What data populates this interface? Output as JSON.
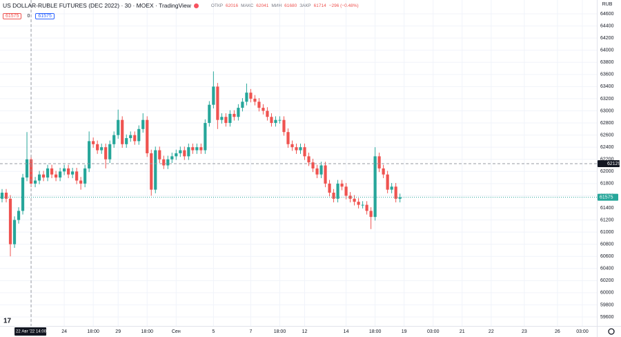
{
  "header": {
    "symbol": "US DOLLAR-RUBLE FUTURES (DEC 2022) · 30 · MOEX · TradingView",
    "ohlc": [
      {
        "label": "ОТКР",
        "value": "62016"
      },
      {
        "label": "МАКС",
        "value": "62041"
      },
      {
        "label": "МИН",
        "value": "61680"
      },
      {
        "label": "ЗАКР",
        "value": "61714"
      }
    ],
    "change": "−296 (−0.48%)",
    "sell": "61575",
    "spread": "0",
    "buy": "61575"
  },
  "chart_data": {
    "type": "candlestick",
    "categories": [
      null,
      null,
      null,
      null,
      null,
      null,
      null,
      "22 Авг '22",
      null,
      null,
      null,
      null,
      null,
      null,
      null,
      "24",
      null,
      null,
      null,
      null,
      null,
      null,
      "18:00",
      null,
      null,
      null,
      null,
      null,
      "29",
      null,
      null,
      null,
      null,
      null,
      null,
      "18:00",
      null,
      null,
      null,
      null,
      null,
      null,
      "Сен",
      null,
      null,
      null,
      null,
      null,
      null,
      null,
      null,
      "5",
      null,
      null,
      null,
      null,
      null,
      null,
      null,
      null,
      "7",
      null,
      null,
      null,
      null,
      null,
      null,
      "18:00",
      null,
      null,
      null,
      null,
      null,
      "12",
      null,
      null,
      null,
      null,
      null,
      null,
      null,
      null,
      null,
      "14",
      null,
      null,
      null,
      null,
      null,
      null,
      "18:00",
      null,
      null,
      null,
      null,
      null,
      null,
      "19",
      null,
      null,
      null,
      null,
      null,
      null,
      "03:00",
      null,
      null,
      null,
      null,
      null,
      null,
      "21",
      null,
      null,
      null,
      null,
      null,
      null,
      "22",
      null,
      null,
      null,
      null,
      null,
      null,
      null,
      "23",
      null,
      null,
      null,
      null,
      null,
      null,
      null,
      "26",
      null,
      null,
      null,
      null,
      null,
      "03:00",
      null,
      null,
      null
    ],
    "open": [
      61550,
      61650,
      61550,
      60800,
      61200,
      61350,
      61900,
      62200,
      61800,
      61850,
      61950,
      61900,
      62050,
      61950,
      61900,
      62000,
      62050,
      61950,
      62000,
      61850,
      61800,
      62050,
      62500,
      62450,
      62350,
      62400,
      62200,
      62450,
      62600,
      62850,
      62450,
      62550,
      62600,
      62500,
      62700,
      62850,
      62300,
      61700,
      62350,
      62200,
      62100,
      62200,
      62250,
      62300,
      62350,
      62250,
      62400,
      62350,
      62400,
      62350,
      62800,
      63100,
      63400,
      62850,
      62900,
      62800,
      62950,
      62900,
      63050,
      63150,
      63300,
      63200,
      63150,
      63050,
      63000,
      62900,
      62800,
      62850,
      62850,
      62650,
      62450,
      62400,
      62350,
      62400,
      62250,
      62150,
      62050,
      61950,
      62100,
      61800,
      61650,
      61550,
      61800,
      61750,
      61600,
      61550,
      61500,
      61450,
      61450,
      61350,
      61250,
      62250,
      62050,
      61950,
      61700,
      61750,
      61550,
      null,
      null,
      null,
      null,
      null,
      null,
      null,
      null,
      null,
      null,
      null,
      null,
      null,
      null,
      null,
      null,
      null,
      null,
      null,
      null,
      null,
      null,
      null,
      null,
      null,
      null,
      null,
      null,
      null,
      null,
      null,
      null,
      null,
      null,
      null,
      null,
      null,
      null,
      null,
      null,
      null,
      null,
      null,
      null,
      null,
      null,
      null
    ],
    "high": [
      61710,
      61710,
      61610,
      61260,
      61410,
      61960,
      62650,
      62260,
      61910,
      62010,
      62010,
      62110,
      62110,
      62010,
      62060,
      62110,
      62110,
      62060,
      62060,
      61910,
      62110,
      62660,
      62560,
      62510,
      62460,
      62460,
      62510,
      62660,
      63020,
      62910,
      62610,
      62660,
      62660,
      62760,
      62960,
      62910,
      62360,
      62410,
      62410,
      62260,
      62260,
      62310,
      62360,
      62410,
      62410,
      62460,
      62460,
      62460,
      62460,
      62860,
      63160,
      63650,
      63460,
      62960,
      62960,
      63010,
      63010,
      63110,
      63210,
      63450,
      63360,
      63260,
      63210,
      63110,
      63060,
      62960,
      62910,
      62910,
      62910,
      62710,
      62510,
      62460,
      62460,
      62460,
      62310,
      62210,
      62110,
      62160,
      62160,
      61860,
      61710,
      61860,
      61860,
      61810,
      61660,
      61610,
      61560,
      61510,
      61510,
      61410,
      62400,
      62310,
      62110,
      62010,
      61810,
      61810,
      61635,
      null,
      null,
      null,
      null,
      null,
      null,
      null,
      null,
      null,
      null,
      null,
      null,
      null,
      null,
      null,
      null,
      null,
      null,
      null,
      null,
      null,
      null,
      null,
      null,
      null,
      null,
      null,
      null,
      null,
      null,
      null,
      null,
      null,
      null,
      null,
      null,
      null,
      null,
      null,
      null,
      null,
      null,
      null,
      null,
      null,
      null,
      null
    ],
    "low": [
      61490,
      61490,
      60600,
      60740,
      61140,
      61290,
      61840,
      61740,
      61740,
      61790,
      61840,
      61840,
      61890,
      61840,
      61840,
      61940,
      61890,
      61890,
      61790,
      61700,
      61740,
      61990,
      62390,
      62290,
      62290,
      62050,
      62140,
      62390,
      62540,
      62390,
      62390,
      62490,
      62440,
      62440,
      62640,
      62240,
      61600,
      61640,
      62140,
      62040,
      62040,
      62140,
      62190,
      62240,
      62190,
      62190,
      62290,
      62290,
      62290,
      62290,
      62740,
      63040,
      62700,
      62790,
      62740,
      62740,
      62840,
      62840,
      62990,
      63090,
      63140,
      63090,
      62990,
      62940,
      62840,
      62740,
      62740,
      62790,
      62590,
      62390,
      62340,
      62290,
      62290,
      62190,
      62090,
      61990,
      61890,
      61890,
      61740,
      61590,
      61490,
      61490,
      61690,
      61540,
      61490,
      61440,
      61390,
      61390,
      61290,
      61050,
      61190,
      61990,
      61890,
      61640,
      61640,
      61490,
      61490,
      null,
      null,
      null,
      null,
      null,
      null,
      null,
      null,
      null,
      null,
      null,
      null,
      null,
      null,
      null,
      null,
      null,
      null,
      null,
      null,
      null,
      null,
      null,
      null,
      null,
      null,
      null,
      null,
      null,
      null,
      null,
      null,
      null,
      null,
      null,
      null,
      null,
      null,
      null,
      null,
      null,
      null,
      null,
      null,
      null,
      null,
      null
    ],
    "close": [
      61650,
      61550,
      60800,
      61200,
      61350,
      61900,
      62200,
      61800,
      61850,
      61950,
      61900,
      62050,
      61950,
      61900,
      62000,
      62050,
      61950,
      62000,
      61850,
      61800,
      62050,
      62500,
      62450,
      62350,
      62400,
      62200,
      62450,
      62600,
      62850,
      62450,
      62550,
      62600,
      62500,
      62700,
      62850,
      62300,
      61700,
      62350,
      62200,
      62100,
      62200,
      62250,
      62300,
      62350,
      62250,
      62400,
      62350,
      62400,
      62350,
      62800,
      63100,
      63400,
      62850,
      62900,
      62800,
      62950,
      62900,
      63050,
      63150,
      63300,
      63200,
      63150,
      63050,
      63000,
      62900,
      62800,
      62850,
      62850,
      62650,
      62450,
      62400,
      62350,
      62400,
      62250,
      62150,
      62050,
      61950,
      62100,
      61800,
      61650,
      61550,
      61800,
      61750,
      61600,
      61550,
      61500,
      61450,
      61450,
      61350,
      61250,
      62250,
      62050,
      61950,
      61700,
      61750,
      61550,
      61575,
      null,
      null,
      null,
      null,
      null,
      null,
      null,
      null,
      null,
      null,
      null,
      null,
      null,
      null,
      null,
      null,
      null,
      null,
      null,
      null,
      null,
      null,
      null,
      null,
      null,
      null,
      null,
      null,
      null,
      null,
      null,
      null,
      null,
      null,
      null,
      null,
      null,
      null,
      null,
      null,
      null,
      null,
      null,
      null,
      null,
      null,
      null
    ],
    "ylim": [
      59452,
      64828
    ],
    "yticks": [
      59600,
      59800,
      60000,
      60200,
      60400,
      60600,
      60800,
      61000,
      61200,
      61400,
      61600,
      61800,
      62000,
      62200,
      62400,
      62600,
      62800,
      63000,
      63200,
      63400,
      63600,
      63800,
      64000,
      64200,
      64400,
      64600
    ],
    "y_unit": "RUB",
    "grid": true,
    "up_color": "#26a69a",
    "down_color": "#ef5350",
    "last_price": 61575,
    "crosshair": {
      "value": 62129,
      "date": "22 Авг '22",
      "time": "14:00"
    }
  }
}
